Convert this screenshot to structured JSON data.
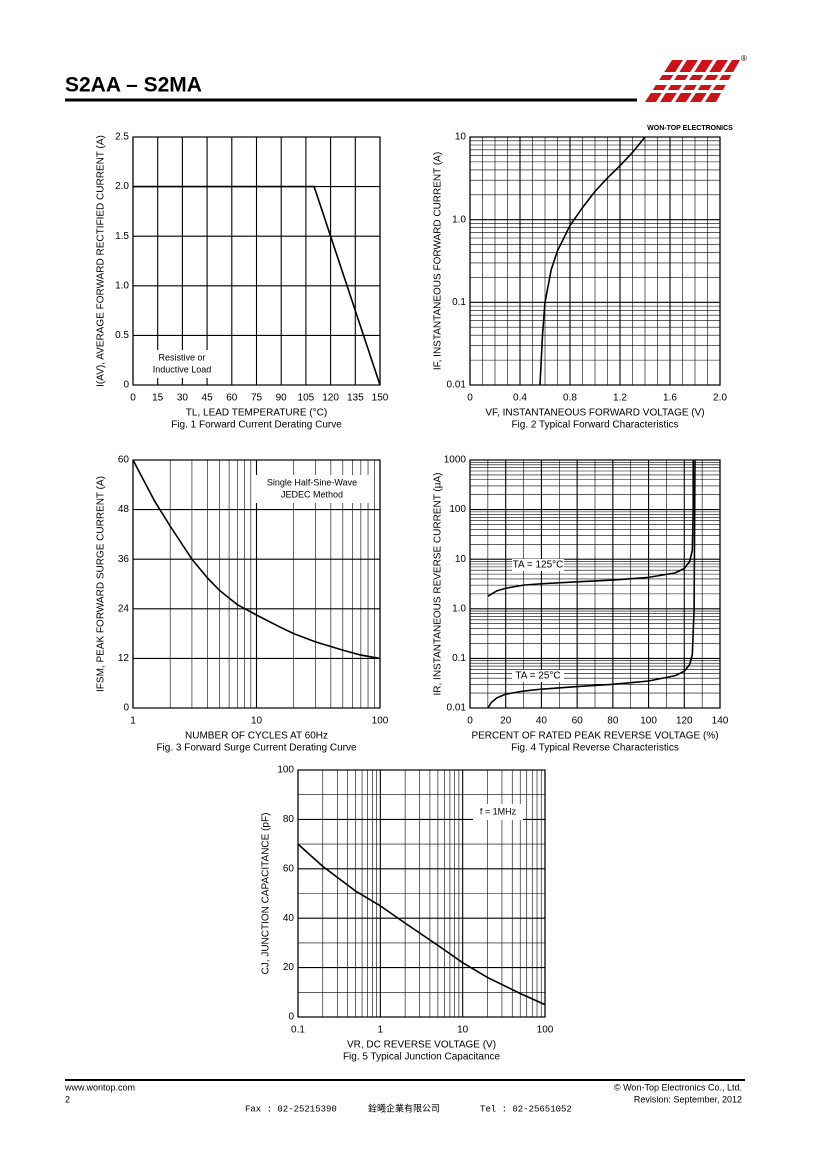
{
  "header": {
    "title": "S2AA – S2MA",
    "company": "WON-TOP ELECTRONICS",
    "registered": "®"
  },
  "chart_data": [
    {
      "type": "line",
      "xlabel": "TL, LEAD TEMPERATURE (°C)",
      "ylabel": "I(AV), AVERAGE FORWARD RECTIFIED CURRENT (A)",
      "caption": "Fig. 1 Forward Current Derating Curve",
      "annotation": [
        "Resistive or",
        "Inductive Load"
      ],
      "xlim": [
        0,
        150
      ],
      "xticks": [
        0,
        15,
        30,
        45,
        60,
        75,
        90,
        105,
        120,
        135,
        150
      ],
      "ylim": [
        0,
        2.5
      ],
      "yticks": [
        0,
        0.5,
        {
          "value": 1,
          "label": "1.0"
        },
        1.5,
        {
          "value": 2,
          "label": "2.0"
        },
        2.5
      ],
      "grid": true,
      "series": [
        {
          "color": "#000000",
          "x": [
            0,
            110,
            150
          ],
          "values": [
            2,
            2,
            0
          ]
        }
      ]
    },
    {
      "type": "line",
      "xlabel": "VF, INSTANTANEOUS FORWARD VOLTAGE (V)",
      "ylabel": "IF, INSTANTANEOUS FORWARD CURRENT (A)",
      "caption": "Fig. 2 Typical Forward Characteristics",
      "xlim": [
        0,
        2
      ],
      "xticks": [
        0,
        0.4,
        0.8,
        1.2,
        1.6,
        {
          "value": 2,
          "label": "2.0"
        }
      ],
      "x_minor_divisions": 4,
      "yscale": "log",
      "ylim": [
        0.01,
        10
      ],
      "yticks": [
        0.01,
        0.1,
        {
          "value": 1,
          "label": "1.0"
        },
        10
      ],
      "grid": true,
      "series": [
        {
          "color": "#000000",
          "x": [
            0.56,
            0.58,
            0.6,
            0.65,
            0.7,
            0.8,
            0.9,
            1.0,
            1.1,
            1.2,
            1.3,
            1.4
          ],
          "values": [
            0.01,
            0.04,
            0.1,
            0.25,
            0.42,
            0.85,
            1.4,
            2.2,
            3.2,
            4.5,
            6.5,
            10
          ]
        }
      ]
    },
    {
      "type": "line",
      "xlabel": "NUMBER OF CYCLES AT 60Hz",
      "ylabel": "IFSM, PEAK FORWARD SURGE CURRENT (A)",
      "caption": "Fig. 3 Forward Surge Current Derating Curve",
      "annotation": [
        "Single Half-Sine-Wave",
        "JEDEC Method"
      ],
      "xscale": "log",
      "xlim": [
        1,
        100
      ],
      "xticks": [
        1,
        10,
        100
      ],
      "ylim": [
        0,
        60
      ],
      "yticks": [
        0,
        12,
        24,
        36,
        48,
        60
      ],
      "grid": true,
      "series": [
        {
          "color": "#000000",
          "x": [
            1,
            1.5,
            2,
            3,
            4,
            5,
            7,
            10,
            15,
            20,
            30,
            50,
            70,
            100
          ],
          "values": [
            60,
            50,
            44,
            36,
            31.5,
            28.5,
            25,
            22.5,
            19.8,
            18,
            16,
            14,
            12.8,
            12
          ]
        }
      ]
    },
    {
      "type": "line",
      "xlabel": "PERCENT OF RATED PEAK REVERSE VOLTAGE (%)",
      "ylabel": "IR, INSTANTANEOUS REVERSE CURRENT (µA)",
      "caption": "Fig. 4 Typical Reverse Characteristics",
      "xlim": [
        0,
        140
      ],
      "xticks": [
        0,
        20,
        40,
        60,
        80,
        100,
        120,
        140
      ],
      "x_minor_divisions": 2,
      "yscale": "log",
      "ylim": [
        0.01,
        1000
      ],
      "yticks": [
        0.01,
        0.1,
        {
          "value": 1,
          "label": "1.0"
        },
        10,
        100,
        1000
      ],
      "grid": true,
      "series": [
        {
          "name": "TA = 125°C",
          "color": "#000000",
          "x": [
            10,
            15,
            20,
            30,
            40,
            60,
            80,
            100,
            115,
            120,
            123,
            124.5,
            125,
            125
          ],
          "values": [
            1.8,
            2.3,
            2.6,
            3,
            3.2,
            3.5,
            3.8,
            4.3,
            5.3,
            6.5,
            9,
            15,
            100,
            1000
          ]
        },
        {
          "name": "TA = 25°C",
          "color": "#000000",
          "x": [
            10,
            12,
            15,
            20,
            30,
            40,
            60,
            80,
            100,
            115,
            120,
            123,
            124.5,
            125.5,
            126
          ],
          "values": [
            0.01,
            0.013,
            0.016,
            0.019,
            0.022,
            0.024,
            0.027,
            0.03,
            0.035,
            0.045,
            0.055,
            0.075,
            0.12,
            1,
            1000
          ]
        }
      ]
    },
    {
      "type": "line",
      "xlabel": "VR, DC REVERSE VOLTAGE (V)",
      "ylabel": "CJ, JUNCTION CAPACITANCE (pF)",
      "caption": "Fig. 5 Typical Junction Capacitance",
      "annotation": [
        "f = 1MHz"
      ],
      "xscale": "log",
      "xlim": [
        0.1,
        100
      ],
      "xticks": [
        0.1,
        1,
        10,
        100
      ],
      "ylim": [
        0,
        100
      ],
      "yticks": [
        0,
        20,
        40,
        60,
        80,
        100
      ],
      "y_minor_divisions": 2,
      "grid": true,
      "series": [
        {
          "color": "#000000",
          "x": [
            0.1,
            0.2,
            0.5,
            1,
            2,
            5,
            10,
            20,
            50,
            100
          ],
          "values": [
            70,
            61,
            51,
            45,
            38,
            29,
            22,
            16,
            9.5,
            5
          ]
        }
      ]
    }
  ],
  "footer": {
    "website": "www.wontop.com",
    "page": "2",
    "copyright": "© Won-Top Electronics Co., Ltd.",
    "revision": "Revision: September, 2012",
    "fax": "Fax : 02-25215390",
    "company_cn": "銓曦企業有限公司",
    "tel": "Tel : 02-25651052"
  }
}
